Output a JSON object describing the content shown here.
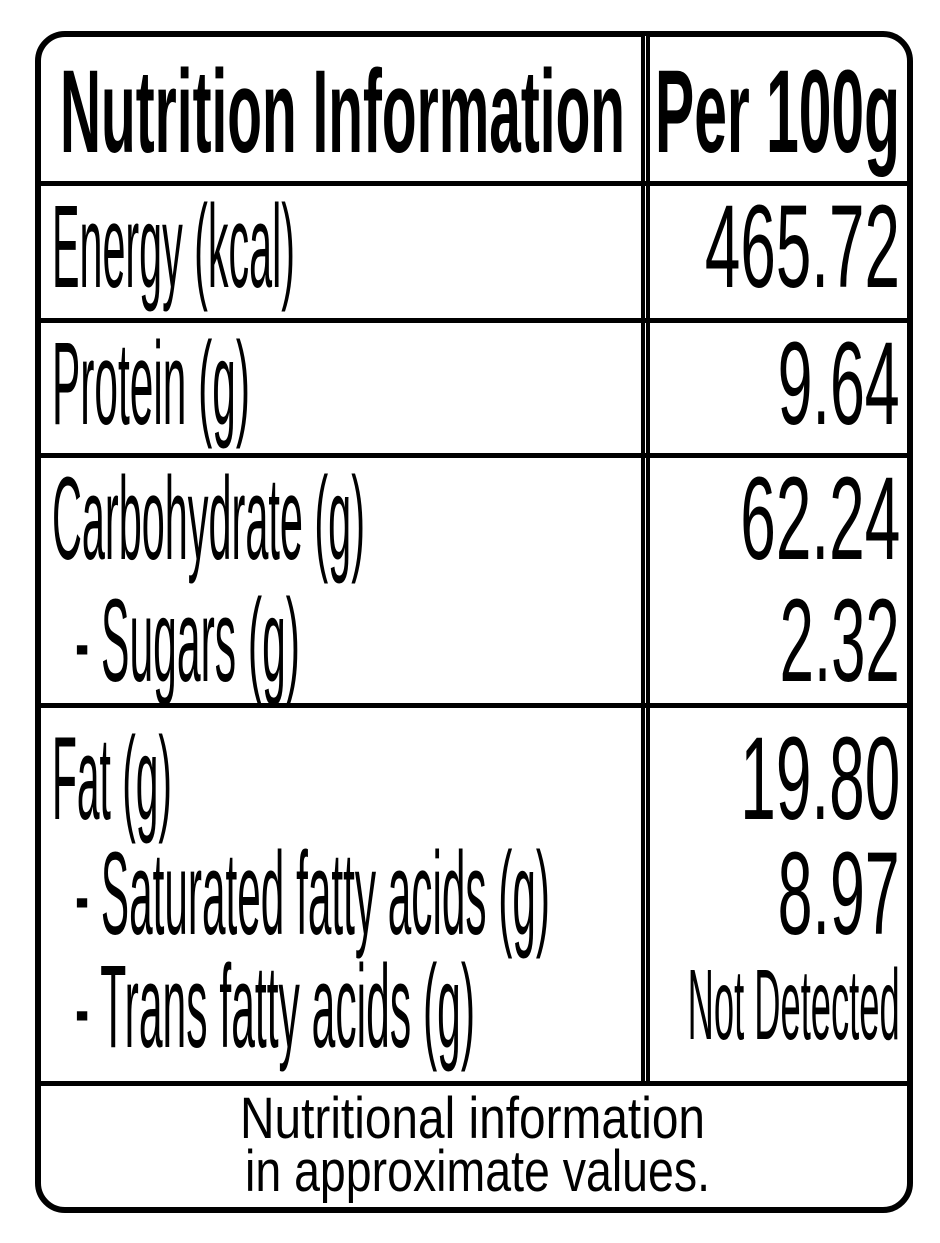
{
  "header": {
    "title": "Nutrition Information",
    "per": "Per 100g"
  },
  "rows": [
    {
      "label": "Energy (kcal)",
      "value": "465.72"
    },
    {
      "label": "Protein (g)",
      "value": "9.64"
    },
    {
      "label": "Carbohydrate (g)",
      "value": "62.24"
    },
    {
      "label": "- Sugars (g)",
      "value": "2.32"
    },
    {
      "label": "Fat (g)",
      "value": "19.80"
    },
    {
      "label": "- Saturated fatty acids (g)",
      "value": "8.97"
    },
    {
      "label": "- Trans fatty acids (g)",
      "value": "Not Detected"
    }
  ],
  "footer": {
    "line1": "Nutritional information",
    "line2": "in approximate values."
  }
}
